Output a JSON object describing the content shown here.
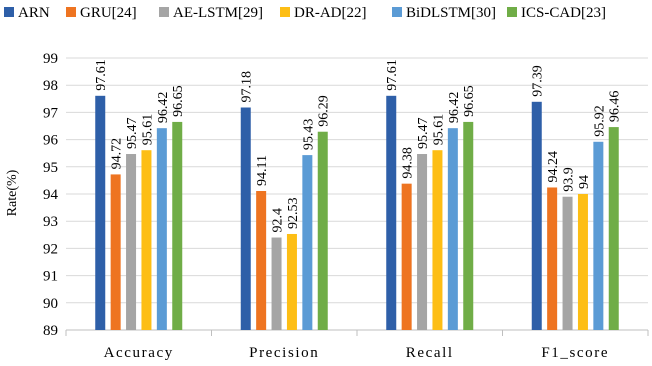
{
  "chart_data": {
    "type": "bar",
    "title": "",
    "xlabel": "",
    "ylabel": "Rate(%)",
    "ylim": [
      89,
      99
    ],
    "yticks": [
      89,
      90,
      91,
      92,
      93,
      94,
      95,
      96,
      97,
      98,
      99
    ],
    "grid": "horizontal",
    "legend_position": "top",
    "categories": [
      "Accuracy",
      "Precision",
      "Recall",
      "F1_score"
    ],
    "series": [
      {
        "name": "ARN",
        "color": "#2E5FA8",
        "values": [
          97.61,
          97.18,
          97.61,
          97.39
        ],
        "labels": [
          "97.61",
          "97.18",
          "97.61",
          "97.39"
        ]
      },
      {
        "name": "GRU[24]",
        "color": "#EE7421",
        "values": [
          94.72,
          94.11,
          94.38,
          94.24
        ],
        "labels": [
          "94.72",
          "94.11",
          "94.38",
          "94.24"
        ]
      },
      {
        "name": "AE-LSTM[29]",
        "color": "#A5A5A5",
        "values": [
          95.47,
          92.4,
          95.47,
          93.9
        ],
        "labels": [
          "95.47",
          "92.4",
          "95.47",
          "93.9"
        ]
      },
      {
        "name": "DR-AD[22]",
        "color": "#FDBE15",
        "values": [
          95.61,
          92.53,
          95.61,
          94
        ],
        "labels": [
          "95.61",
          "92.53",
          "95.61",
          "94"
        ]
      },
      {
        "name": "BiDLSTM[30]",
        "color": "#5B9BD5",
        "values": [
          96.42,
          95.43,
          96.42,
          95.92
        ],
        "labels": [
          "96.42",
          "95.43",
          "96.42",
          "95.92"
        ]
      },
      {
        "name": "ICS-CAD[23]",
        "color": "#70AD47",
        "values": [
          96.65,
          96.29,
          96.65,
          96.46
        ],
        "labels": [
          "96.65",
          "96.29",
          "96.65",
          "96.46"
        ]
      }
    ]
  }
}
